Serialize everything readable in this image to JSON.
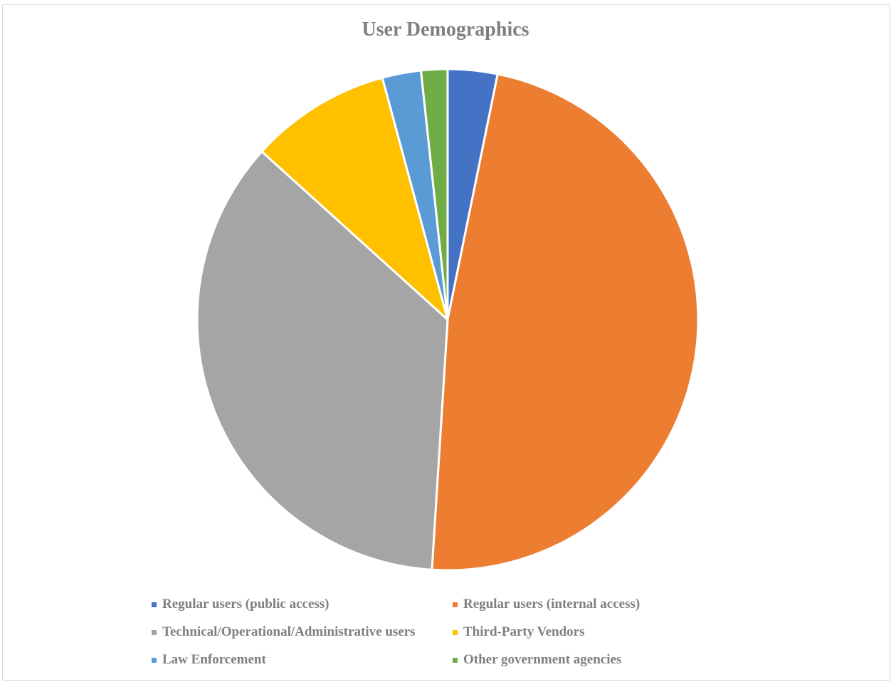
{
  "chart_data": {
    "type": "pie",
    "title": "User Demographics",
    "categories": [
      "Regular users (public access)",
      "Regular users (internal access)",
      "Technical/Operational/Administrative users",
      "Third-Party Vendors",
      "Law Enforcement",
      "Other government agencies"
    ],
    "values": [
      3.2,
      47.8,
      35.7,
      9.1,
      2.5,
      1.7
    ],
    "colors": [
      "#4472C4",
      "#ED7D31",
      "#A5A5A5",
      "#FFC000",
      "#5B9BD5",
      "#70AD47"
    ],
    "start_angle": "12 o'clock",
    "direction": "clockwise",
    "legend_position": "bottom"
  }
}
